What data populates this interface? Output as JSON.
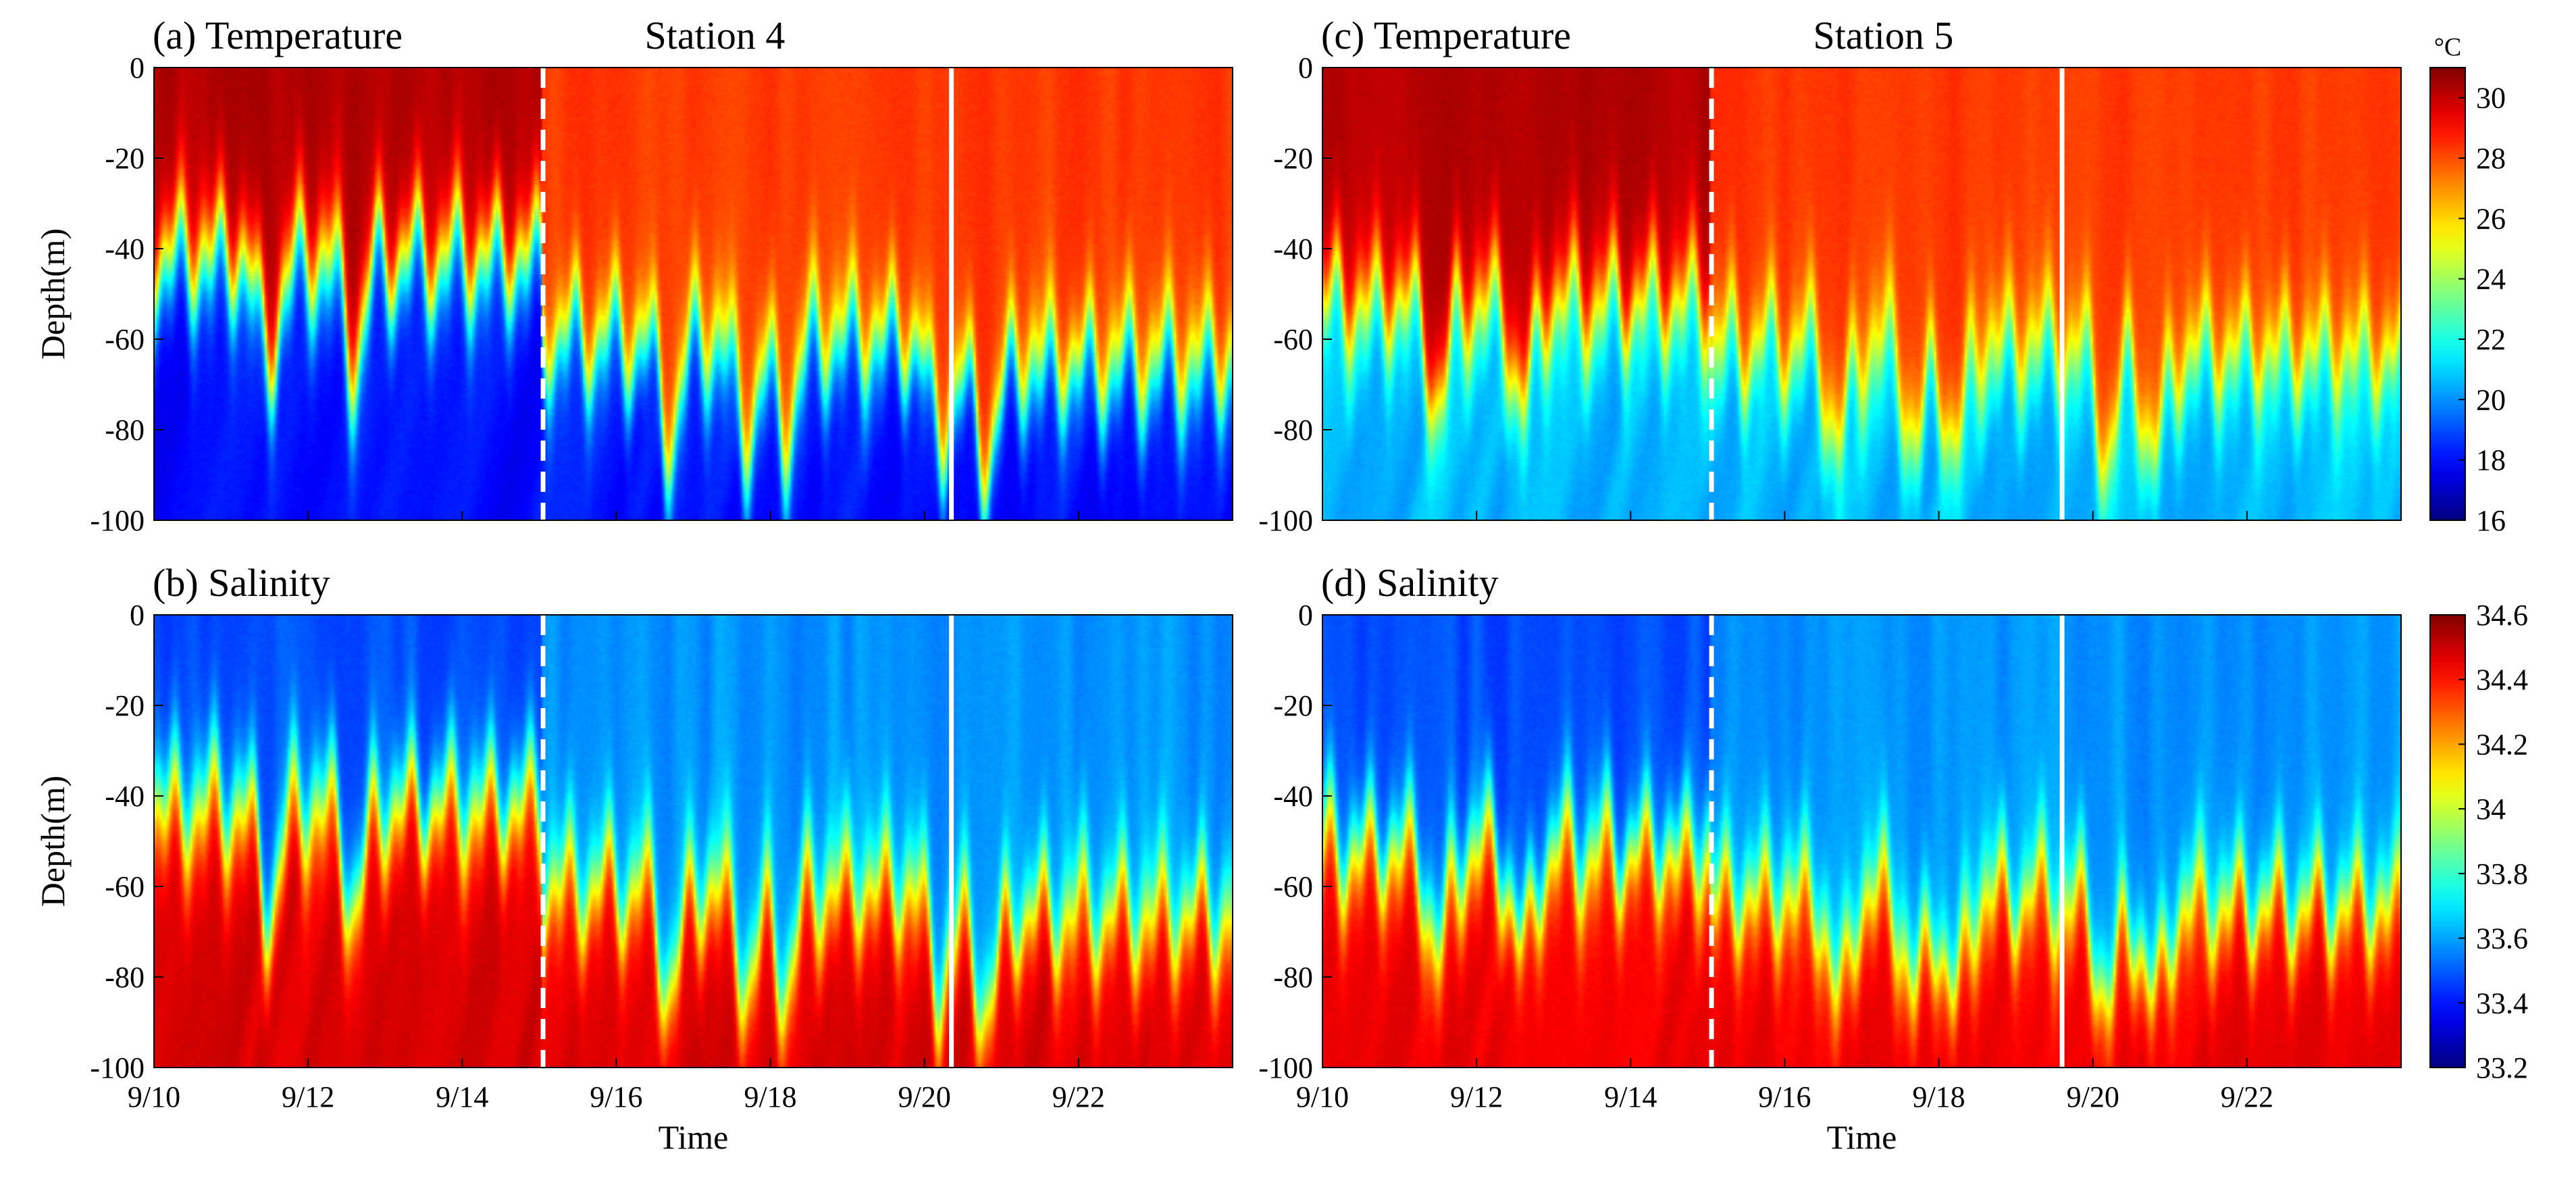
{
  "chart_data": [
    {
      "id": "a",
      "type": "heatmap",
      "panel_label": "(a) Temperature",
      "station_title": "Station 4",
      "variable": "temperature",
      "ylabel": "Depth(m)",
      "xlabel": "",
      "ylim": [
        -100,
        0
      ],
      "yticks": [
        0,
        -20,
        -40,
        -60,
        -80,
        -100
      ],
      "xlim_days": [
        0,
        14
      ],
      "xtick_labels": [],
      "vertical_lines": [
        {
          "day": 5.05,
          "style": "dashed"
        },
        {
          "day": 10.35,
          "style": "solid"
        }
      ],
      "mixed_layer_depth_m": {
        "before_dashed": 28,
        "between": 46,
        "after_solid": 52
      },
      "deep_value_C": 18
    },
    {
      "id": "b",
      "type": "heatmap",
      "panel_label": "(b) Salinity",
      "station_title": "",
      "variable": "salinity",
      "ylabel": "Depth(m)",
      "xlabel": "Time",
      "ylim": [
        -100,
        0
      ],
      "yticks": [
        0,
        -20,
        -40,
        -60,
        -80,
        -100
      ],
      "xlim_days": [
        0,
        14
      ],
      "xtick_labels": [
        "9/10",
        "9/12",
        "9/14",
        "9/16",
        "9/18",
        "9/20",
        "9/22"
      ],
      "vertical_lines": [
        {
          "day": 5.05,
          "style": "dashed"
        },
        {
          "day": 10.35,
          "style": "solid"
        }
      ],
      "mixed_layer_depth_m": {
        "before_dashed": 28,
        "between": 46,
        "after_solid": 52
      },
      "deep_value_psu": 34.48
    },
    {
      "id": "c",
      "type": "heatmap",
      "panel_label": "(c) Temperature",
      "station_title": "Station 5",
      "variable": "temperature",
      "ylabel": "",
      "xlabel": "",
      "ylim": [
        -100,
        0
      ],
      "yticks": [
        0,
        -20,
        -40,
        -60,
        -80,
        -100
      ],
      "xlim_days": [
        0,
        14
      ],
      "xtick_labels": [],
      "vertical_lines": [
        {
          "day": 5.05,
          "style": "dashed"
        },
        {
          "day": 9.6,
          "style": "solid"
        }
      ],
      "mixed_layer_depth_m": {
        "before_dashed": 38,
        "between": 48,
        "after_solid": 50
      },
      "deep_value_C": 20.5
    },
    {
      "id": "d",
      "type": "heatmap",
      "panel_label": "(d) Salinity",
      "station_title": "",
      "variable": "salinity",
      "ylabel": "",
      "xlabel": "Time",
      "ylim": [
        -100,
        0
      ],
      "yticks": [
        0,
        -20,
        -40,
        -60,
        -80,
        -100
      ],
      "xlim_days": [
        0,
        14
      ],
      "xtick_labels": [
        "9/10",
        "9/12",
        "9/14",
        "9/16",
        "9/18",
        "9/20",
        "9/22"
      ],
      "vertical_lines": [
        {
          "day": 5.05,
          "style": "dashed"
        },
        {
          "day": 9.6,
          "style": "solid"
        }
      ],
      "mixed_layer_depth_m": {
        "before_dashed": 38,
        "between": 48,
        "after_solid": 50
      },
      "deep_value_psu": 34.45
    }
  ],
  "colorbars": {
    "temperature": {
      "unit": "°C",
      "min": 16,
      "max": 31,
      "ticks": [
        16,
        18,
        20,
        22,
        24,
        26,
        28,
        30
      ]
    },
    "salinity": {
      "unit": "",
      "min": 33.2,
      "max": 34.6,
      "ticks": [
        "33.2",
        "33.4",
        "33.6",
        "33.8",
        "34",
        "34.2",
        "34.4",
        "34.6"
      ]
    }
  },
  "colormap": "jet"
}
